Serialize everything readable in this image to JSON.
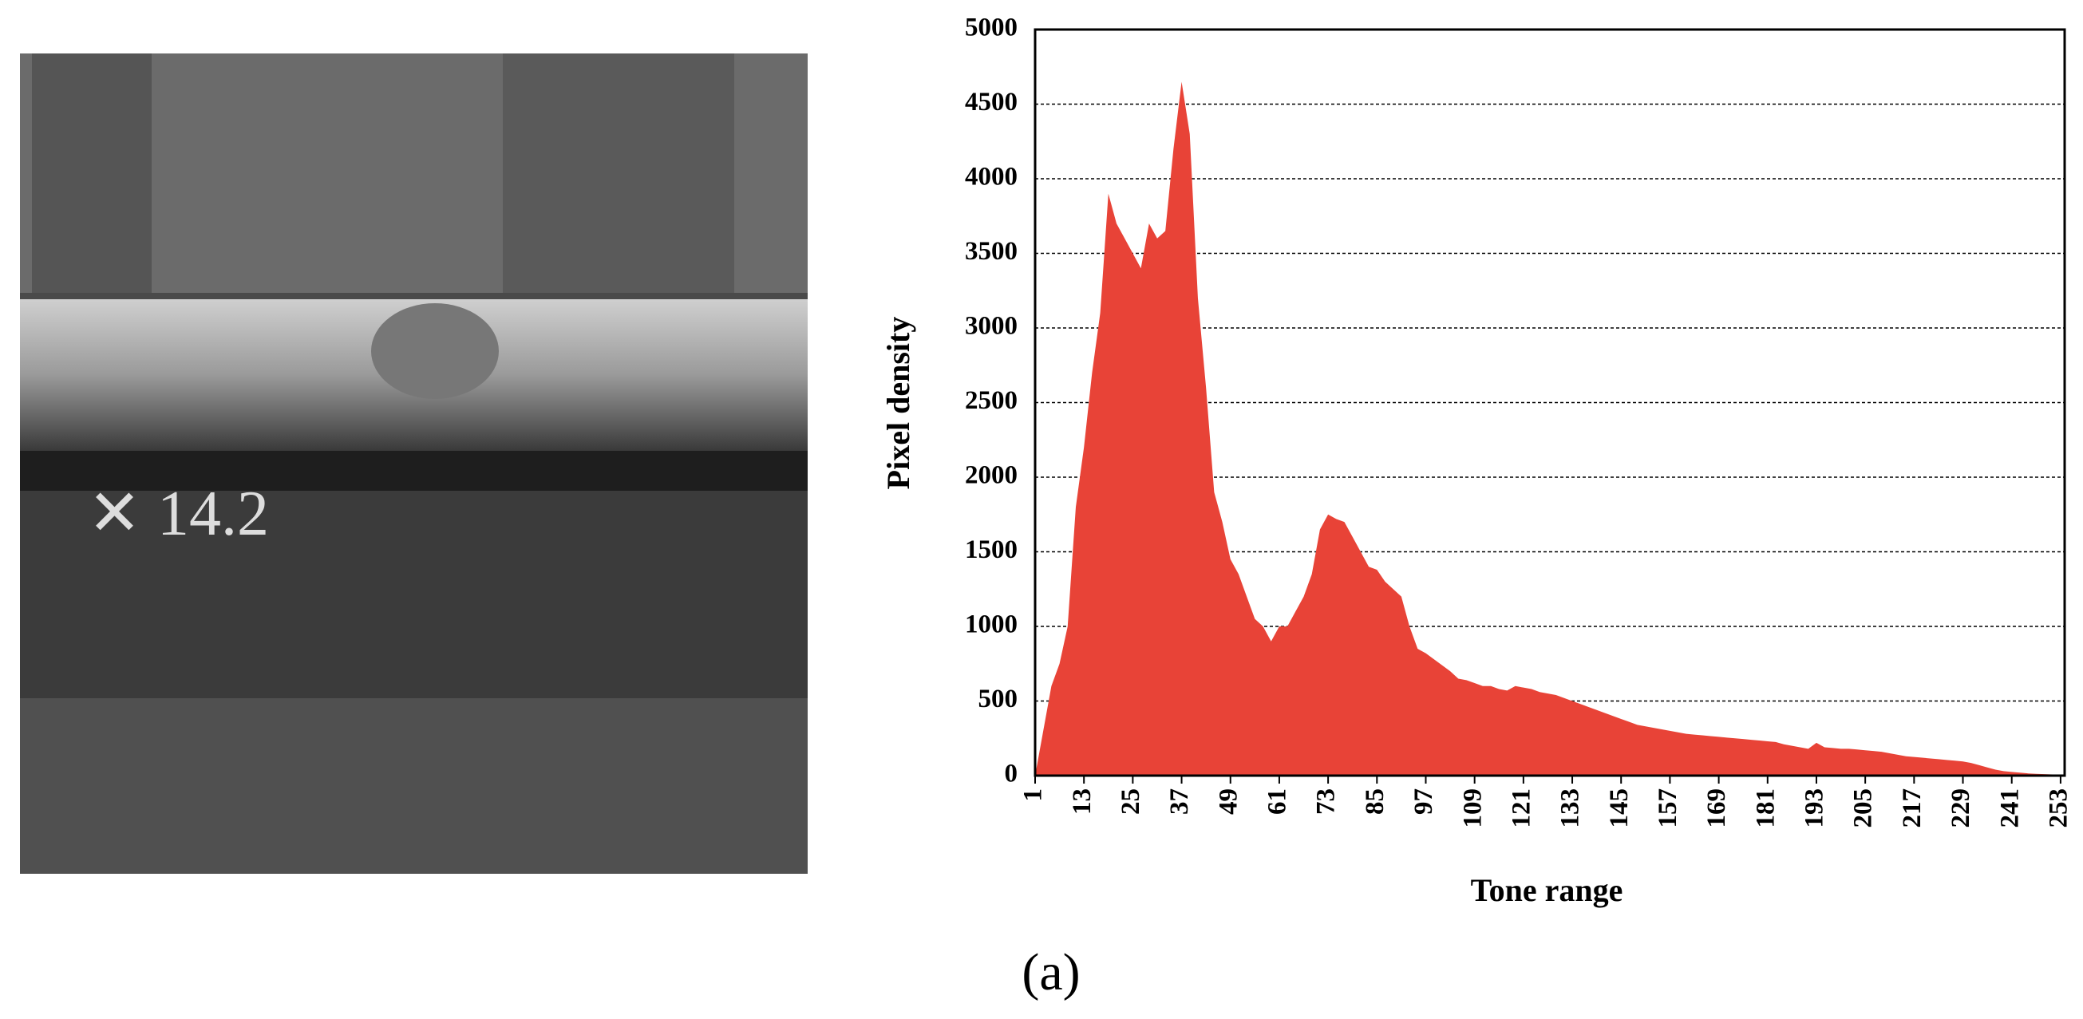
{
  "chart_data": {
    "type": "area",
    "x_label": "Tone range",
    "y_label": "Pixel density",
    "caption": "(a)",
    "color": "#e84337",
    "grid": true,
    "xlim": [
      1,
      254
    ],
    "ylim": [
      0,
      5000
    ],
    "xticks": [
      1,
      13,
      25,
      37,
      49,
      61,
      73,
      85,
      97,
      109,
      121,
      133,
      145,
      157,
      169,
      181,
      193,
      205,
      217,
      229,
      241,
      253
    ],
    "yticks": [
      0,
      500,
      1000,
      1500,
      2000,
      2500,
      3000,
      3500,
      4000,
      4500,
      5000
    ],
    "x": [
      1,
      3,
      5,
      7,
      9,
      11,
      13,
      15,
      17,
      19,
      21,
      23,
      25,
      27,
      29,
      31,
      33,
      35,
      37,
      39,
      41,
      43,
      45,
      47,
      49,
      51,
      53,
      55,
      57,
      59,
      61,
      63,
      65,
      67,
      69,
      71,
      73,
      75,
      77,
      79,
      81,
      83,
      85,
      87,
      89,
      91,
      93,
      95,
      97,
      99,
      101,
      103,
      105,
      107,
      109,
      111,
      113,
      115,
      117,
      119,
      121,
      123,
      125,
      127,
      129,
      131,
      133,
      135,
      137,
      139,
      141,
      143,
      145,
      147,
      149,
      151,
      153,
      155,
      157,
      159,
      161,
      163,
      165,
      167,
      169,
      171,
      173,
      175,
      177,
      179,
      181,
      183,
      185,
      187,
      189,
      191,
      193,
      195,
      197,
      199,
      201,
      203,
      205,
      207,
      209,
      211,
      213,
      215,
      217,
      219,
      221,
      223,
      225,
      227,
      229,
      231,
      233,
      235,
      237,
      239,
      241,
      243,
      245,
      247,
      249,
      251,
      253
    ],
    "values": [
      0,
      300,
      600,
      750,
      1000,
      1800,
      2200,
      2700,
      3100,
      3900,
      3700,
      3600,
      3500,
      3400,
      3700,
      3600,
      3650,
      4200,
      4650,
      4300,
      3200,
      2600,
      1900,
      1700,
      1450,
      1350,
      1200,
      1050,
      1000,
      900,
      1000,
      1000,
      1100,
      1200,
      1350,
      1650,
      1750,
      1720,
      1700,
      1600,
      1500,
      1400,
      1380,
      1300,
      1250,
      1200,
      1000,
      850,
      820,
      780,
      740,
      700,
      650,
      640,
      620,
      600,
      600,
      580,
      570,
      600,
      590,
      580,
      560,
      550,
      540,
      520,
      500,
      480,
      460,
      440,
      420,
      400,
      380,
      360,
      340,
      330,
      320,
      310,
      300,
      290,
      280,
      275,
      270,
      265,
      260,
      255,
      250,
      245,
      240,
      235,
      230,
      225,
      210,
      200,
      190,
      180,
      220,
      190,
      185,
      180,
      180,
      175,
      170,
      165,
      160,
      150,
      140,
      130,
      125,
      120,
      115,
      110,
      105,
      100,
      95,
      85,
      70,
      55,
      40,
      30,
      25,
      20,
      15,
      12,
      10,
      8,
      0
    ]
  }
}
